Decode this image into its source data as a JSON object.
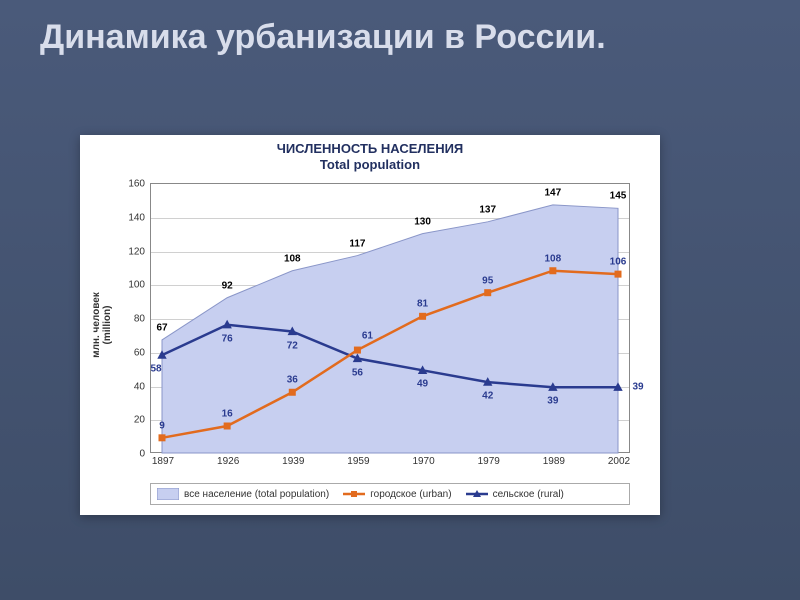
{
  "slide": {
    "title": "Динамика  урбанизации в России.",
    "background_gradient": [
      "#4a5a7a",
      "#3e4d68"
    ],
    "title_color": "#d8ddeb",
    "title_fontsize": 34
  },
  "chart": {
    "type": "area+line",
    "title_line1": "ЧИСЛЕННОСТЬ НАСЕЛЕНИЯ",
    "title_line2": "Total population",
    "title_color": "#223060",
    "title_fontsize": 13,
    "background_color": "#ffffff",
    "plot_border_color": "#888888",
    "grid_color": "#d0d0d0",
    "y": {
      "label_line1": "млн. человек",
      "label_line2": "(million)",
      "min": 0,
      "max": 160,
      "tick_step": 20,
      "tick_fontsize": 10
    },
    "x": {
      "categories": [
        "1897",
        "1926",
        "1939",
        "1959",
        "1970",
        "1979",
        "1989",
        "2002"
      ],
      "tick_fontsize": 10
    },
    "series": {
      "total": {
        "legend": "все население   (total population)",
        "type": "area",
        "fill_color": "#c7cff0",
        "line_color": "#8a96c8",
        "line_width": 1,
        "values": [
          67,
          92,
          108,
          117,
          130,
          137,
          147,
          145
        ],
        "label_color": "#000000",
        "label_dy": -12
      },
      "urban": {
        "legend": "городское   (urban)",
        "type": "line",
        "color": "#e26b1e",
        "marker": "square",
        "marker_size": 7,
        "line_width": 2.5,
        "values": [
          9,
          16,
          36,
          61,
          81,
          95,
          108,
          106
        ],
        "label_color": "#2a3b8f",
        "label_dy": -12
      },
      "rural": {
        "legend": "сельское   (rural)",
        "type": "line",
        "color": "#2a3b8f",
        "marker": "triangle",
        "marker_size": 8,
        "line_width": 2.5,
        "values": [
          58,
          76,
          72,
          56,
          49,
          42,
          39,
          39
        ],
        "label_color": "#2a3b8f",
        "label_dy": 14
      }
    },
    "label_overrides": {
      "urban": {
        "3": {
          "dy": -14,
          "dx": 10
        }
      },
      "rural": {
        "0": {
          "dy": 14,
          "dx": -6
        },
        "7": {
          "dy": 0,
          "dx": 20
        }
      }
    },
    "legend_border_color": "#aaaaaa",
    "legend_fontsize": 10
  }
}
